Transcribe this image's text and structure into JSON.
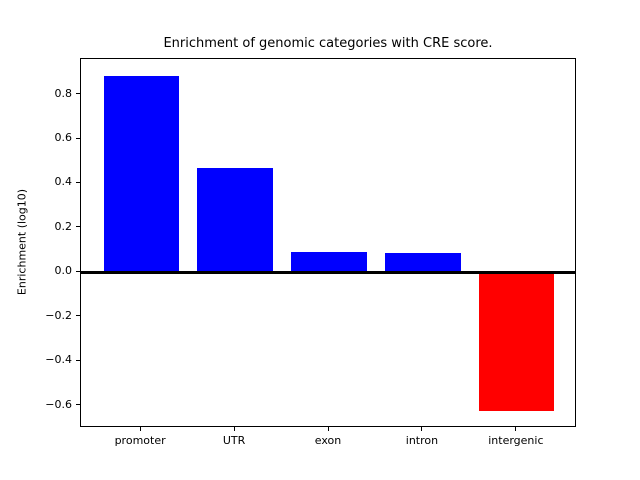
{
  "figure": {
    "background": "#ffffff",
    "text_color": "#000000",
    "axis_color": "#000000"
  },
  "chart_data": {
    "type": "bar",
    "title": "Enrichment of genomic categories with CRE score.",
    "xlabel": "",
    "ylabel": "Enrichment (log10)",
    "categories": [
      "promoter",
      "UTR",
      "exon",
      "intron",
      "intergenic"
    ],
    "values": [
      0.885,
      0.47,
      0.091,
      0.086,
      -0.625
    ],
    "bar_colors": [
      "#0000ff",
      "#0000ff",
      "#0000ff",
      "#0000ff",
      "#ff0000"
    ],
    "positive_color": "#0000ff",
    "negative_color": "#ff0000",
    "yticks": [
      0.8,
      0.6,
      0.4,
      0.2,
      0.0,
      -0.2,
      -0.4,
      -0.6
    ],
    "ytick_labels": [
      "0.8",
      "0.6",
      "0.4",
      "0.2",
      "0.0",
      "−0.2",
      "−0.4",
      "−0.6"
    ],
    "ylim": [
      -0.7,
      0.96
    ],
    "xlim": [
      -0.64,
      4.64
    ],
    "bar_width_units": 0.8,
    "zero_line": true,
    "grid": false,
    "legend": null
  }
}
